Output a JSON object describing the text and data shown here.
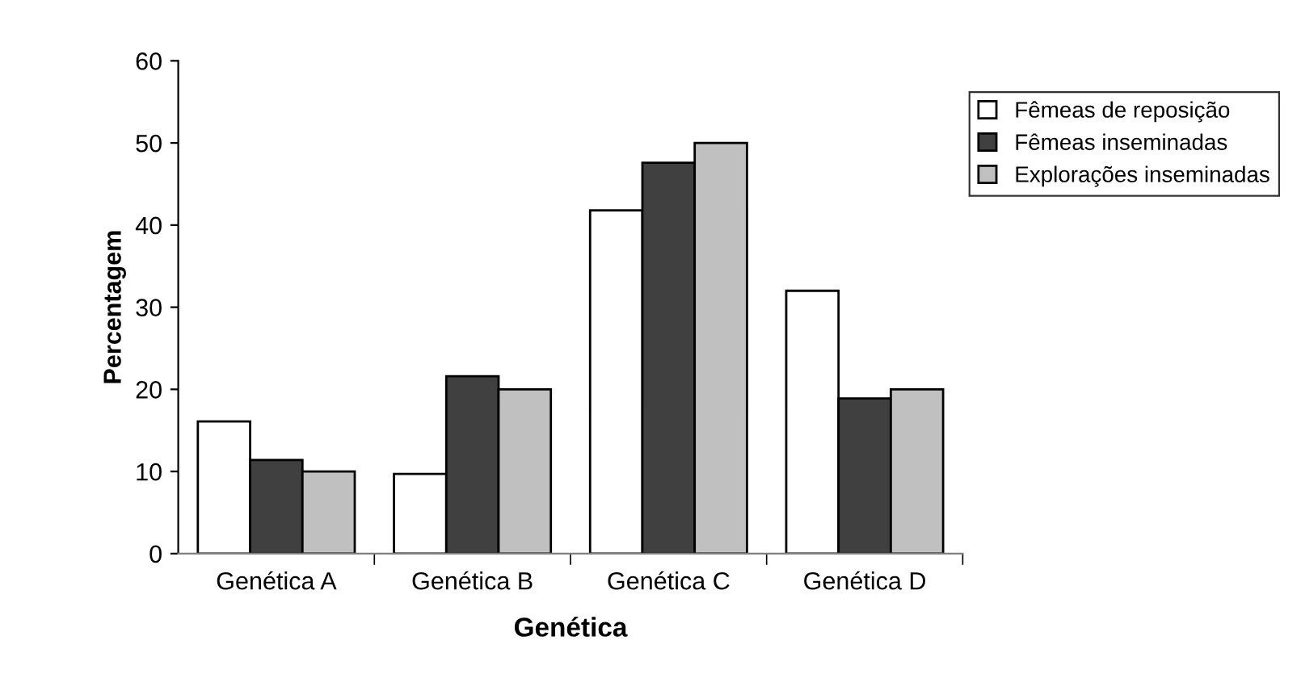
{
  "chart_data": {
    "type": "bar",
    "xlabel": "Genética",
    "ylabel": "Percentagem",
    "categories": [
      "Genética A",
      "Genética B",
      "Genética C",
      "Genética D"
    ],
    "series": [
      {
        "name": "Fêmeas de reposição",
        "color": "#ffffff",
        "values": [
          16.1,
          9.7,
          41.8,
          32.0
        ]
      },
      {
        "name": "Fêmeas inseminadas",
        "color": "#404040",
        "values": [
          11.4,
          21.6,
          47.6,
          18.9
        ]
      },
      {
        "name": "Explorações inseminadas",
        "color": "#c0c0c0",
        "values": [
          10,
          20,
          50,
          20
        ]
      }
    ],
    "ylim": [
      0,
      60
    ],
    "yticks": [
      0,
      10,
      20,
      30,
      40,
      50,
      60
    ],
    "grid": false,
    "legend": "top right"
  }
}
